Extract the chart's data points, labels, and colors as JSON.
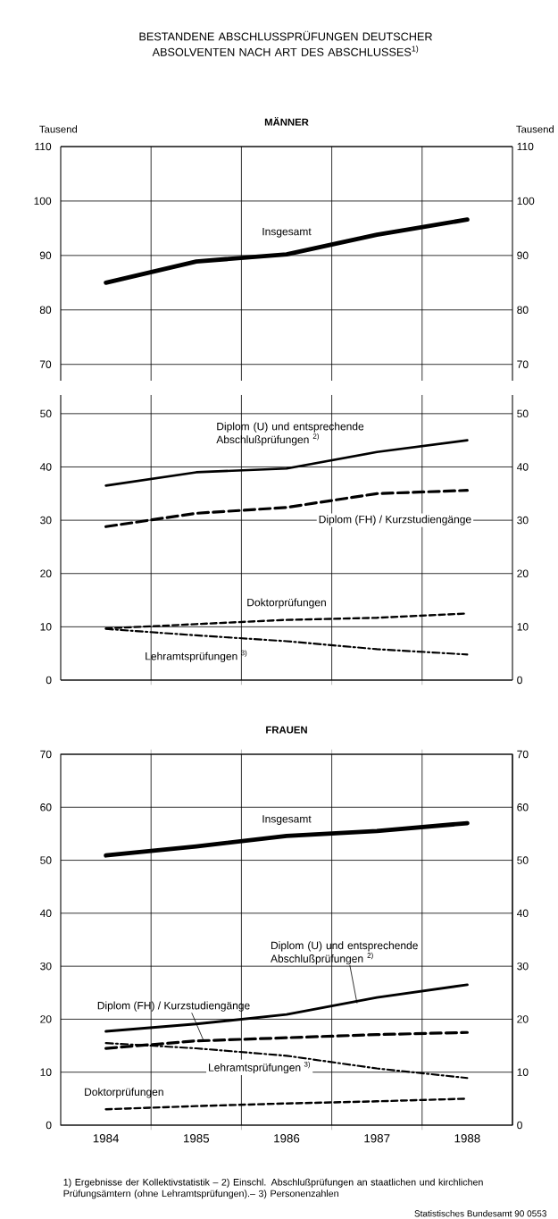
{
  "chart_data": [
    {
      "type": "line",
      "title": "BESTANDENE ABSCHLUSSPRÜFUNGEN DEUTSCHER ABSOLVENTEN NACH ART DES ABSCHLUSSES$^{1)}$",
      "subtitle": "MÄNNER",
      "ylabel": "Tausend",
      "y2label": "Tausend",
      "x": [
        1984,
        1985,
        1986,
        1987,
        1988
      ],
      "xlim": [
        1983.5,
        1988.5
      ],
      "xticks": [
        {
          "value": 1984.5,
          "label": null
        },
        {
          "value": 1985.5,
          "label": null
        },
        {
          "value": 1986.5,
          "label": null
        },
        {
          "value": 1987.5,
          "label": null
        }
      ],
      "ylim": [
        67,
        110
      ],
      "yticks": [
        70,
        80,
        90,
        100,
        110
      ],
      "y2lim": [
        67,
        110
      ],
      "y2ticks": [
        70,
        80,
        90,
        100,
        110
      ],
      "grid": true,
      "tick_labels": "y",
      "series": [
        {
          "name": "Insgesamt",
          "color": "#000000",
          "line_style": "solid",
          "values": [
            85.0,
            88.9,
            90.2,
            93.8,
            96.6
          ]
        }
      ]
    },
    {
      "type": "line",
      "x": [
        1984,
        1985,
        1986,
        1987,
        1988
      ],
      "xlim": [
        1983.5,
        1988.5
      ],
      "xticks": [
        {
          "value": 1984.5,
          "label": null
        },
        {
          "value": 1985.5,
          "label": null
        },
        {
          "value": 1986.5,
          "label": null
        },
        {
          "value": 1987.5,
          "label": null
        }
      ],
      "ylim": [
        0,
        53.5
      ],
      "yticks": [
        0,
        10,
        20,
        30,
        40,
        50
      ],
      "y2lim": [
        0,
        53.5
      ],
      "y2ticks": [
        0,
        10,
        20,
        30,
        40,
        50
      ],
      "grid": true,
      "tick_labels": "y",
      "series": [
        {
          "name": "Diplom (U) und entsprechende Abschlußprüfungen $^{2)}$",
          "color": "#000000",
          "line_style": "solid",
          "values": [
            36.5,
            39.0,
            39.7,
            42.8,
            45.0
          ]
        },
        {
          "name": "Diplom (FH) / Kurzstudiengänge",
          "color": "#000000",
          "line_style": "dashed",
          "values": [
            28.8,
            31.3,
            32.4,
            35.0,
            35.6
          ]
        },
        {
          "name": "Doktorprüfungen",
          "color": "#000000",
          "line_style": "dashed",
          "values": [
            9.7,
            10.5,
            11.3,
            11.7,
            12.5
          ]
        },
        {
          "name": "Lehramtsprüfungen $^{3)}$",
          "color": "#000000",
          "line_style": "dashdot",
          "values": [
            9.6,
            8.4,
            7.3,
            5.8,
            4.8
          ]
        }
      ]
    },
    {
      "type": "line",
      "title": "FRAUEN",
      "x": [
        1984,
        1985,
        1986,
        1987,
        1988
      ],
      "xlim": [
        1983.5,
        1988.5
      ],
      "xticks": [
        {
          "value": 1984,
          "label": "1984"
        },
        {
          "value": 1984.5,
          "label": null
        },
        {
          "value": 1985,
          "label": "1985"
        },
        {
          "value": 1985.5,
          "label": null
        },
        {
          "value": 1986,
          "label": "1986"
        },
        {
          "value": 1986.5,
          "label": null
        },
        {
          "value": 1987,
          "label": "1987"
        },
        {
          "value": 1987.5,
          "label": null
        },
        {
          "value": 1988,
          "label": "1988"
        }
      ],
      "ylim": [
        0,
        70
      ],
      "yticks": [
        0,
        10,
        20,
        30,
        40,
        50,
        60,
        70
      ],
      "y2lim": [
        0,
        70
      ],
      "y2ticks": [
        0,
        10,
        20,
        30,
        40,
        50,
        60,
        70
      ],
      "grid": true,
      "series": [
        {
          "name": "Insgesamt",
          "color": "#000000",
          "line_style": "solid",
          "values": [
            50.9,
            52.6,
            54.6,
            55.5,
            57.0
          ]
        },
        {
          "name": "Diplom (U) und entsprechende Abschlußprüfungen $^{2)}$",
          "color": "#000000",
          "line_style": "solid",
          "values": [
            17.7,
            19.1,
            20.9,
            24.1,
            26.5
          ]
        },
        {
          "name": "Diplom (FH) / Kurzstudiengänge",
          "color": "#000000",
          "line_style": "dashed",
          "values": [
            14.5,
            15.9,
            16.5,
            17.1,
            17.5
          ]
        },
        {
          "name": "Lehramtsprüfungen $^{3)}$",
          "color": "#000000",
          "line_style": "dashdot",
          "values": [
            15.5,
            14.5,
            13.1,
            10.7,
            8.9
          ]
        },
        {
          "name": "Doktorprüfungen",
          "color": "#000000",
          "line_style": "dashed",
          "values": [
            3.0,
            3.6,
            4.1,
            4.5,
            5.0
          ]
        }
      ],
      "annotations": [
        "1) Ergebnisse der Kollektivstatistik – 2) Einschl. Abschlußprüfungen an staatlichen und kirchlichen Prüfungsämtern (ohne Lehramtsprüfungen).– 3) Personenzahlen",
        "Statistisches Bundesamt 90 0553"
      ]
    }
  ]
}
